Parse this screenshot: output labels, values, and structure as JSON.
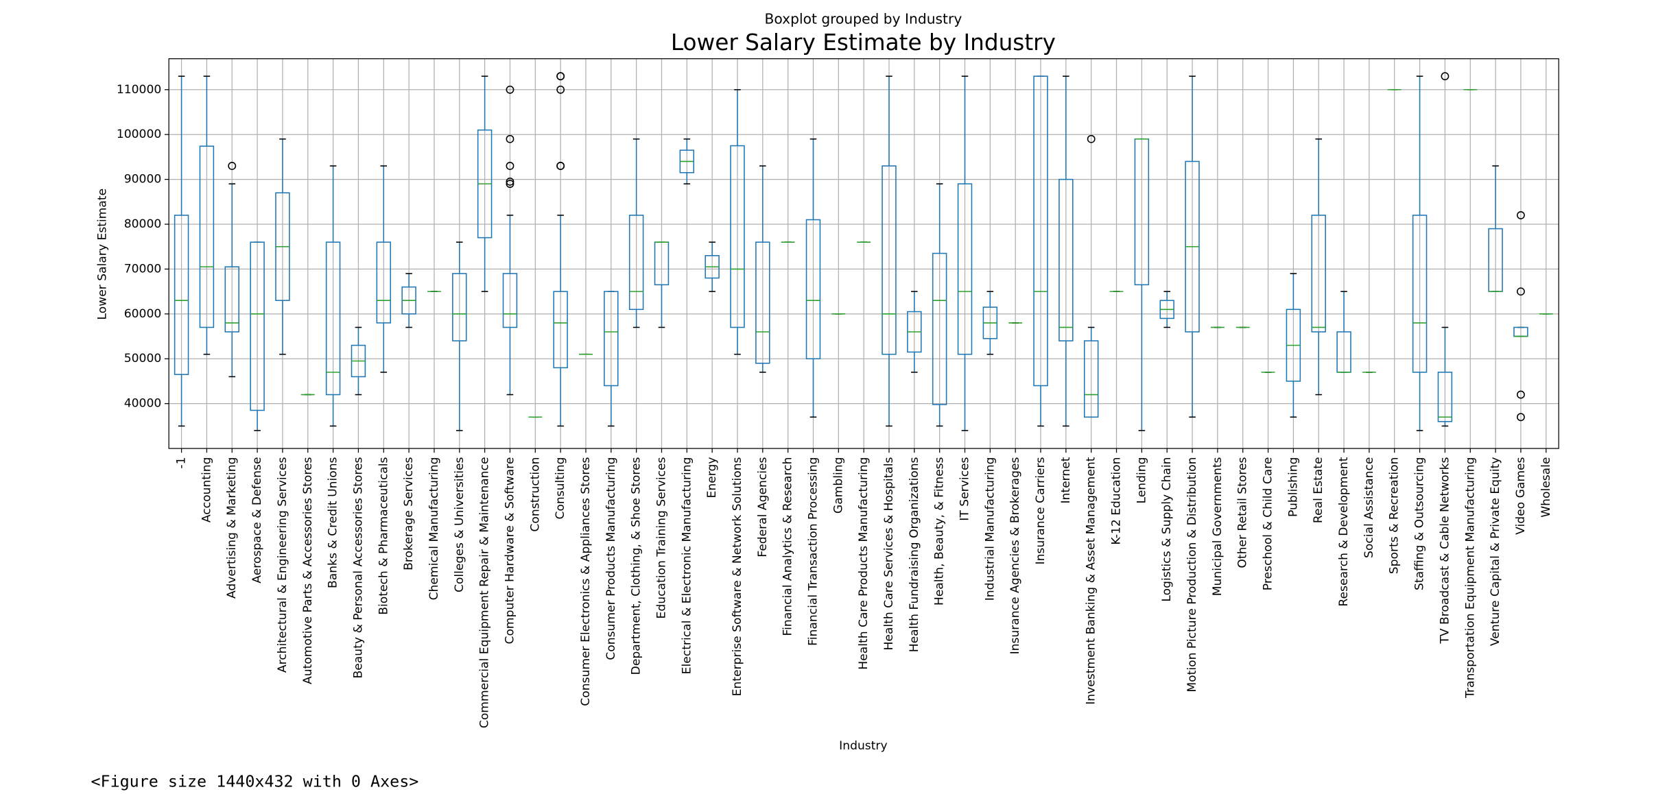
{
  "chart_data": {
    "type": "box",
    "suptitle": "Boxplot grouped by Industry",
    "title": "Lower Salary Estimate by Industry",
    "x_label": "Industry",
    "y_label": "Lower Salary Estimate",
    "box_color": "#1f77b4",
    "median_color": "#2ca02c",
    "outlier_color": "#000000",
    "grid": true,
    "ylim": [
      30000,
      116900
    ],
    "yticks": [
      40000,
      50000,
      60000,
      70000,
      80000,
      90000,
      100000,
      110000
    ],
    "categories": [
      "-1",
      "Accounting",
      "Advertising & Marketing",
      "Aerospace & Defense",
      "Architectural & Engineering Services",
      "Automotive Parts & Accessories Stores",
      "Banks & Credit Unions",
      "Beauty & Personal Accessories Stores",
      "Biotech & Pharmaceuticals",
      "Brokerage Services",
      "Chemical Manufacturing",
      "Colleges & Universities",
      "Commercial Equipment Repair & Maintenance",
      "Computer Hardware & Software",
      "Construction",
      "Consulting",
      "Consumer Electronics & Appliances Stores",
      "Consumer Products Manufacturing",
      "Department, Clothing, & Shoe Stores",
      "Education Training Services",
      "Electrical & Electronic Manufacturing",
      "Energy",
      "Enterprise Software & Network Solutions",
      "Federal Agencies",
      "Financial Analytics & Research",
      "Financial Transaction Processing",
      "Gambling",
      "Health Care Products Manufacturing",
      "Health Care Services & Hospitals",
      "Health Fundraising Organizations",
      "Health, Beauty, & Fitness",
      "IT Services",
      "Industrial Manufacturing",
      "Insurance Agencies & Brokerages",
      "Insurance Carriers",
      "Internet",
      "Investment Banking & Asset Management",
      "K-12 Education",
      "Lending",
      "Logistics & Supply Chain",
      "Motion Picture Production & Distribution",
      "Municipal Governments",
      "Other Retail Stores",
      "Preschool & Child Care",
      "Publishing",
      "Real Estate",
      "Research & Development",
      "Social Assistance",
      "Sports & Recreation",
      "Staffing & Outsourcing",
      "TV Broadcast & Cable Networks",
      "Transportation Equipment Manufacturing",
      "Venture Capital & Private Equity",
      "Video Games",
      "Wholesale"
    ],
    "boxes": [
      {
        "low": 35000,
        "q1": 46500,
        "median": 63000,
        "q3": 82000,
        "high": 113000
      },
      {
        "low": 51000,
        "q1": 57000,
        "median": 70500,
        "q3": 97400,
        "high": 113000
      },
      {
        "low": 46000,
        "q1": 56000,
        "median": 58000,
        "q3": 70500,
        "high": 89000,
        "outliers": [
          93000
        ]
      },
      {
        "low": 34000,
        "q1": 38500,
        "median": 60000,
        "q3": 76000,
        "high": 76000
      },
      {
        "low": 51000,
        "q1": 63000,
        "median": 75000,
        "q3": 87000,
        "high": 99000
      },
      {
        "low": 42000,
        "q1": 42000,
        "median": 42000,
        "q3": 42000,
        "high": 42000
      },
      {
        "low": 35000,
        "q1": 42000,
        "median": 47000,
        "q3": 76000,
        "high": 93000
      },
      {
        "low": 42000,
        "q1": 46000,
        "median": 49500,
        "q3": 53000,
        "high": 57000
      },
      {
        "low": 47000,
        "q1": 58000,
        "median": 63000,
        "q3": 76000,
        "high": 93000
      },
      {
        "low": 57000,
        "q1": 60000,
        "median": 63000,
        "q3": 66000,
        "high": 69000
      },
      {
        "low": 65000,
        "q1": 65000,
        "median": 65000,
        "q3": 65000,
        "high": 65000
      },
      {
        "low": 34000,
        "q1": 54000,
        "median": 60000,
        "q3": 69000,
        "high": 76000
      },
      {
        "low": 65000,
        "q1": 77000,
        "median": 89000,
        "q3": 101000,
        "high": 113000
      },
      {
        "low": 42000,
        "q1": 57000,
        "median": 60000,
        "q3": 69000,
        "high": 82000,
        "outliers": [
          110000,
          99000,
          93000,
          89500,
          89000
        ]
      },
      {
        "low": 37000,
        "q1": 37000,
        "median": 37000,
        "q3": 37000,
        "high": 37000
      },
      {
        "low": 35000,
        "q1": 48000,
        "median": 58000,
        "q3": 65000,
        "high": 82000,
        "outliers": [
          113000,
          113000,
          110000,
          93000,
          93000
        ]
      },
      {
        "low": 51000,
        "q1": 51000,
        "median": 51000,
        "q3": 51000,
        "high": 51000
      },
      {
        "low": 35000,
        "q1": 44000,
        "median": 56000,
        "q3": 65000,
        "high": 65000
      },
      {
        "low": 57000,
        "q1": 61000,
        "median": 65000,
        "q3": 82000,
        "high": 99000
      },
      {
        "low": 57000,
        "q1": 66500,
        "median": 76000,
        "q3": 76000,
        "high": 76000
      },
      {
        "low": 89000,
        "q1": 91500,
        "median": 94000,
        "q3": 96500,
        "high": 99000
      },
      {
        "low": 65000,
        "q1": 68000,
        "median": 70500,
        "q3": 73000,
        "high": 76000
      },
      {
        "low": 51000,
        "q1": 57000,
        "median": 70000,
        "q3": 97500,
        "high": 110000
      },
      {
        "low": 47000,
        "q1": 49000,
        "median": 56000,
        "q3": 76000,
        "high": 93000
      },
      {
        "low": 76000,
        "q1": 76000,
        "median": 76000,
        "q3": 76000,
        "high": 76000
      },
      {
        "low": 37000,
        "q1": 50000,
        "median": 63000,
        "q3": 81000,
        "high": 99000
      },
      {
        "low": 60000,
        "q1": 60000,
        "median": 60000,
        "q3": 60000,
        "high": 60000
      },
      {
        "low": 76000,
        "q1": 76000,
        "median": 76000,
        "q3": 76000,
        "high": 76000
      },
      {
        "low": 35000,
        "q1": 51000,
        "median": 60000,
        "q3": 93000,
        "high": 113000
      },
      {
        "low": 47000,
        "q1": 51500,
        "median": 56000,
        "q3": 60500,
        "high": 65000
      },
      {
        "low": 35000,
        "q1": 39800,
        "median": 63000,
        "q3": 73500,
        "high": 89000
      },
      {
        "low": 34000,
        "q1": 51000,
        "median": 65000,
        "q3": 89000,
        "high": 113000
      },
      {
        "low": 51000,
        "q1": 54500,
        "median": 58000,
        "q3": 61500,
        "high": 65000
      },
      {
        "low": 58000,
        "q1": 58000,
        "median": 58000,
        "q3": 58000,
        "high": 58000
      },
      {
        "low": 35000,
        "q1": 44000,
        "median": 65000,
        "q3": 113000,
        "high": 113000
      },
      {
        "low": 35000,
        "q1": 54000,
        "median": 57000,
        "q3": 90000,
        "high": 113000
      },
      {
        "low": 37000,
        "q1": 37000,
        "median": 42000,
        "q3": 54000,
        "high": 57000,
        "outliers": [
          99000
        ]
      },
      {
        "low": 65000,
        "q1": 65000,
        "median": 65000,
        "q3": 65000,
        "high": 65000
      },
      {
        "low": 34000,
        "q1": 66500,
        "median": 99000,
        "q3": 99000,
        "high": 99000
      },
      {
        "low": 57000,
        "q1": 59000,
        "median": 61000,
        "q3": 63000,
        "high": 65000
      },
      {
        "low": 37000,
        "q1": 56000,
        "median": 75000,
        "q3": 94000,
        "high": 113000
      },
      {
        "low": 57000,
        "q1": 57000,
        "median": 57000,
        "q3": 57000,
        "high": 57000
      },
      {
        "low": 57000,
        "q1": 57000,
        "median": 57000,
        "q3": 57000,
        "high": 57000
      },
      {
        "low": 47000,
        "q1": 47000,
        "median": 47000,
        "q3": 47000,
        "high": 47000
      },
      {
        "low": 37000,
        "q1": 45000,
        "median": 53000,
        "q3": 61000,
        "high": 69000
      },
      {
        "low": 42000,
        "q1": 56000,
        "median": 57000,
        "q3": 82000,
        "high": 99000
      },
      {
        "low": 47000,
        "q1": 47000,
        "median": 47000,
        "q3": 56000,
        "high": 65000
      },
      {
        "low": 47000,
        "q1": 47000,
        "median": 47000,
        "q3": 47000,
        "high": 47000
      },
      {
        "low": 110000,
        "q1": 110000,
        "median": 110000,
        "q3": 110000,
        "high": 110000
      },
      {
        "low": 34000,
        "q1": 47000,
        "median": 58000,
        "q3": 82000,
        "high": 113000
      },
      {
        "low": 35000,
        "q1": 36000,
        "median": 37000,
        "q3": 47000,
        "high": 57000,
        "outliers": [
          113000
        ]
      },
      {
        "low": 110000,
        "q1": 110000,
        "median": 110000,
        "q3": 110000,
        "high": 110000
      },
      {
        "low": 65000,
        "q1": 65000,
        "median": 65000,
        "q3": 79000,
        "high": 93000
      },
      {
        "low": 55000,
        "q1": 55000,
        "median": 55000,
        "q3": 57000,
        "high": 57000,
        "outliers": [
          82000,
          65000,
          42000,
          37000
        ]
      },
      {
        "low": 60000,
        "q1": 60000,
        "median": 60000,
        "q3": 60000,
        "high": 60000
      }
    ]
  },
  "figure_note": "<Figure size 1440x432 with 0 Axes>"
}
